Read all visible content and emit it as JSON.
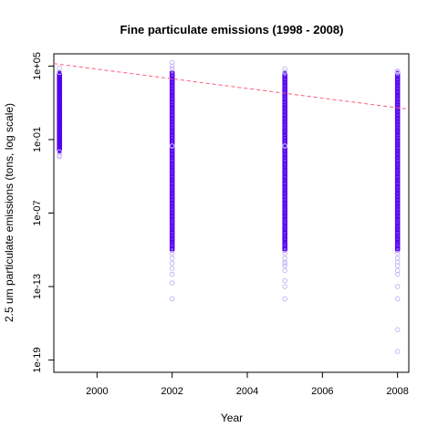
{
  "chart_data": {
    "type": "scatter",
    "title": "Fine particulate emissions (1998 - 2008)",
    "xlabel": "Year",
    "ylabel": "2.5 um particulate emissions (tons, log scale)",
    "y_scale": "log10",
    "xlim": [
      1998.85,
      2008.3
    ],
    "ylim": [
      1e-20,
      1000000.0
    ],
    "x_ticks": [
      2000,
      2002,
      2004,
      2006,
      2008
    ],
    "x_tick_labels": [
      "2000",
      "2002",
      "2004",
      "2006",
      "2008"
    ],
    "y_ticks": [
      100000.0,
      0.1,
      1e-07,
      1e-13,
      1e-19
    ],
    "y_tick_labels": [
      "1e+05",
      "1e-01",
      "1e-07",
      "1e-13",
      "1e-19"
    ],
    "grid": false,
    "legend": "none",
    "colors": {
      "points": "#5500ee",
      "points_faint": "#c9b8f7",
      "trend": "#ff5a7a"
    },
    "series": [
      {
        "kind": "points",
        "groups": [
          {
            "x": 1999,
            "dense_range": [
              0.01,
              30000.0
            ],
            "sparse_values": [
              70000.0,
              30000.0,
              0.01,
              0.005,
              0.004
            ]
          },
          {
            "x": 2002,
            "dense_range": [
              1e-10,
              30000.0
            ],
            "sparse_values": [
              200000.0,
              100000.0,
              60000.0,
              0.03,
              5e-11,
              2e-11,
              8e-12,
              3e-12,
              1e-12,
              2e-13,
              1e-14
            ]
          },
          {
            "x": 2005,
            "dense_range": [
              1e-10,
              30000.0
            ],
            "sparse_values": [
              60000.0,
              30000.0,
              0.03,
              5e-11,
              2e-11,
              1e-11,
              8e-12,
              5e-12,
              2e-12,
              3e-13,
              1e-13,
              1e-14
            ]
          },
          {
            "x": 2008,
            "dense_range": [
              1e-10,
              30000.0
            ],
            "sparse_values": [
              40000.0,
              30000.0,
              5e-11,
              2e-11,
              1e-11,
              5e-12,
              2e-12,
              1e-12,
              1e-13,
              1e-14,
              3e-17,
              5e-19
            ]
          }
        ]
      },
      {
        "kind": "trend",
        "style": "dashed",
        "x": [
          1998.85,
          2008.3
        ],
        "y": [
          160000.0,
          30.0
        ]
      }
    ]
  }
}
